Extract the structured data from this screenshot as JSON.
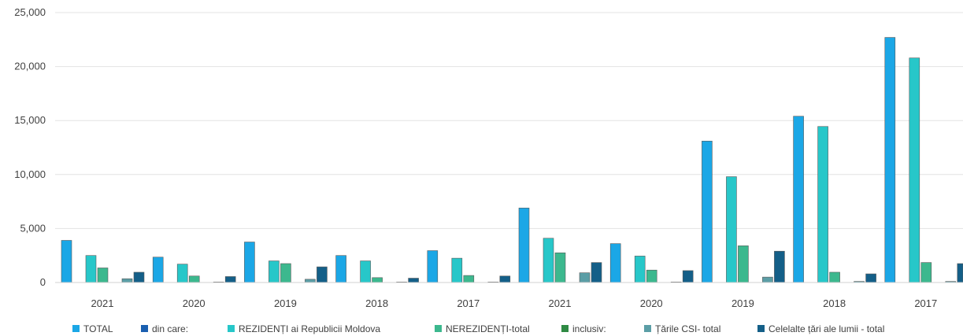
{
  "chart_data": {
    "type": "bar",
    "ylim": [
      0,
      25000
    ],
    "yticks": [
      0,
      5000,
      10000,
      15000,
      20000,
      25000
    ],
    "ytick_labels": [
      "0",
      "5,000",
      "10,000",
      "15,000",
      "20,000",
      "25,000"
    ],
    "grid": true,
    "legend_position": "bottom",
    "categories": [
      "2021",
      "2020",
      "2019",
      "2018",
      "2017",
      "2021",
      "2020",
      "2019",
      "2018",
      "2017"
    ],
    "series": [
      {
        "name": "TOTAL",
        "color": "#1ba7e6",
        "values": [
          3900,
          2350,
          3750,
          2500,
          2950,
          6900,
          3600,
          13100,
          15400,
          22700
        ]
      },
      {
        "name": "din care:",
        "color": "#1a5fb0",
        "values": [
          0,
          0,
          0,
          0,
          0,
          0,
          0,
          0,
          0,
          0
        ]
      },
      {
        "name": "REZIDENȚI ai Republicii Moldova",
        "color": "#27c7c9",
        "values": [
          2500,
          1700,
          2000,
          2000,
          2250,
          4100,
          2450,
          9800,
          14450,
          20800
        ]
      },
      {
        "name": "NEREZIDENȚI-total",
        "color": "#3cb88e",
        "values": [
          1350,
          600,
          1750,
          450,
          650,
          2750,
          1150,
          3400,
          950,
          1850
        ]
      },
      {
        "name": "inclusiv:",
        "color": "#2f8a44",
        "values": [
          0,
          0,
          0,
          0,
          0,
          0,
          0,
          0,
          0,
          0
        ]
      },
      {
        "name": "Țările CSI- total",
        "color": "#5b9ea6",
        "values": [
          350,
          50,
          300,
          50,
          50,
          900,
          50,
          500,
          100,
          100
        ]
      },
      {
        "name": "Celelalte țări ale lumii - total",
        "color": "#145f88",
        "values": [
          950,
          550,
          1450,
          400,
          600,
          1850,
          1100,
          2900,
          800,
          1750
        ]
      }
    ]
  }
}
